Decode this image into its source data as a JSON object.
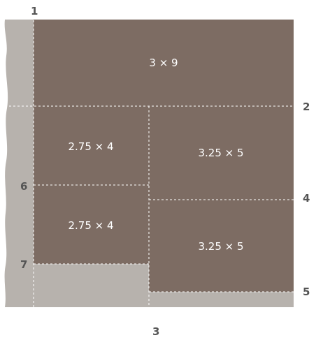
{
  "colors": {
    "slab": "#7d6c63",
    "board_raw": "#b7b2ad",
    "cut_line": "#ffffff"
  },
  "pieces": [
    {
      "label": "3 × 9"
    },
    {
      "label": "2.75 × 4"
    },
    {
      "label": "3.25 × 5"
    },
    {
      "label": "2.75 × 4"
    },
    {
      "label": "3.25 × 5"
    }
  ],
  "markers": [
    "1",
    "2",
    "3",
    "4",
    "5",
    "6",
    "7"
  ]
}
